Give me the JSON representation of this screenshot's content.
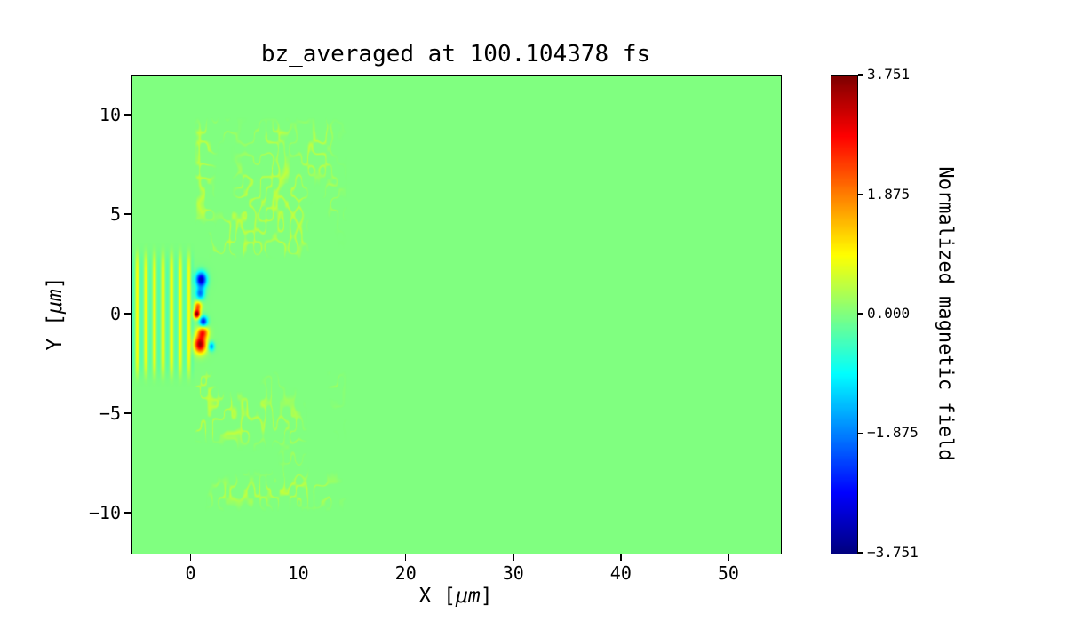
{
  "chart_data": {
    "type": "heatmap",
    "title": "bz_averaged at 100.104378 fs",
    "xlabel": "X [μm]",
    "xlabel_parts": {
      "pre": "X [",
      "unit": "μm",
      "post": "]"
    },
    "ylabel": "Y [μm]",
    "ylabel_parts": {
      "pre": "Y [",
      "unit": "μm",
      "post": "]"
    },
    "xlim": [
      -5.5,
      54.8
    ],
    "ylim": [
      -12,
      12
    ],
    "xticks": {
      "values": [
        0,
        10,
        20,
        30,
        40,
        50
      ],
      "labels": [
        "0",
        "10",
        "20",
        "30",
        "40",
        "50"
      ]
    },
    "yticks": {
      "values": [
        10,
        5,
        0,
        -5,
        -10
      ],
      "labels": [
        "10",
        "5",
        "0",
        "−5",
        "−10"
      ]
    },
    "grid": false,
    "colormap": "jet",
    "vmin": -3.751,
    "vmax": 3.751,
    "colorbar": {
      "label": "Normalized magnetic field",
      "ticks": [
        {
          "value": 3.751,
          "label": "3.751"
        },
        {
          "value": 1.875,
          "label": "1.875"
        },
        {
          "value": 0.0,
          "label": "0.000"
        },
        {
          "value": -1.875,
          "label": "−1.875"
        },
        {
          "value": -3.751,
          "label": "−3.751"
        }
      ]
    },
    "features": {
      "uniform_background": 0.0,
      "laser_pulse_stripes": {
        "x_range": [
          -5.5,
          0.35
        ],
        "y_half_extent": 3.0,
        "wavelength_um": 0.8,
        "amplitude_positive": 0.9,
        "amplitude_negative": 0.35
      },
      "interaction_blobs": [
        {
          "x": 0.9,
          "y": 1.75,
          "rx": 0.5,
          "ry": 0.38,
          "value": -3.3
        },
        {
          "x": 0.8,
          "y": 1.05,
          "rx": 0.42,
          "ry": 0.3,
          "value": -1.9
        },
        {
          "x": 0.6,
          "y": 0.42,
          "rx": 0.32,
          "ry": 0.24,
          "value": 2.1
        },
        {
          "x": 0.5,
          "y": 0.02,
          "rx": 0.3,
          "ry": 0.22,
          "value": 3.7
        },
        {
          "x": 1.1,
          "y": -0.35,
          "rx": 0.38,
          "ry": 0.26,
          "value": -2.7
        },
        {
          "x": 1.05,
          "y": -0.9,
          "rx": 0.5,
          "ry": 0.3,
          "value": 2.4
        },
        {
          "x": 0.8,
          "y": -1.5,
          "rx": 0.55,
          "ry": 0.42,
          "value": 3.5
        },
        {
          "x": 1.85,
          "y": -1.6,
          "rx": 0.28,
          "ry": 0.22,
          "value": -1.7
        }
      ],
      "speckle_noise": {
        "x_range": [
          0.3,
          14.5
        ],
        "y_inner": 2.8,
        "y_outer": 9.9,
        "amplitude": 0.5,
        "frequency": 1.8,
        "threshold": 0.76
      }
    }
  }
}
